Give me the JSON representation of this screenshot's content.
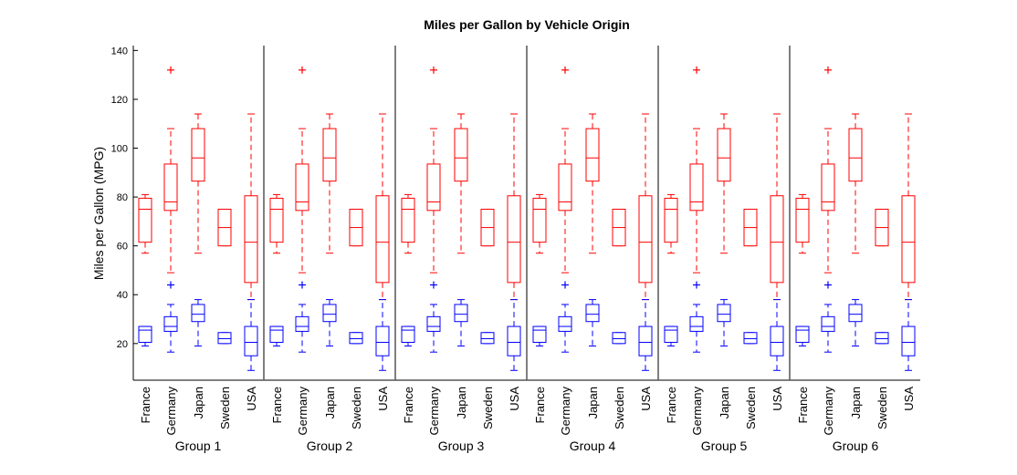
{
  "chart_data": {
    "type": "boxplot",
    "title": "Miles per Gallon by Vehicle Origin",
    "ylabel": "Miles per Gallon (MPG)",
    "xlabel": "",
    "ylim": [
      5,
      142
    ],
    "yticks": [
      20,
      40,
      60,
      80,
      100,
      120,
      140
    ],
    "categories": [
      "France",
      "Germany",
      "Japan",
      "Sweden",
      "USA"
    ],
    "groups": [
      "Group 1",
      "Group 2",
      "Group 3",
      "Group 4",
      "Group 5",
      "Group 6"
    ],
    "series": [
      {
        "name": "red",
        "color": "#ff0000",
        "boxes": [
          {
            "category": "France",
            "whisker_low": 57,
            "q1": 61.5,
            "median": 75,
            "q3": 79.5,
            "whisker_high": 81,
            "outliers": []
          },
          {
            "category": "Germany",
            "whisker_low": 49,
            "q1": 74.5,
            "median": 78,
            "q3": 93.5,
            "whisker_high": 108,
            "outliers": [
              132
            ]
          },
          {
            "category": "Japan",
            "whisker_low": 57,
            "q1": 86.5,
            "median": 96,
            "q3": 108,
            "whisker_high": 114,
            "outliers": []
          },
          {
            "category": "Sweden",
            "whisker_low": 60,
            "q1": 60,
            "median": 67.5,
            "q3": 75,
            "whisker_high": 75,
            "outliers": []
          },
          {
            "category": "USA",
            "whisker_low": 38,
            "q1": 45,
            "median": 61.5,
            "q3": 80.5,
            "whisker_high": 114,
            "outliers": []
          }
        ]
      },
      {
        "name": "blue",
        "color": "#0000ff",
        "boxes": [
          {
            "category": "France",
            "whisker_low": 19,
            "q1": 20.5,
            "median": 25.5,
            "q3": 27,
            "whisker_high": 27,
            "outliers": []
          },
          {
            "category": "Germany",
            "whisker_low": 16.5,
            "q1": 25,
            "median": 27,
            "q3": 31,
            "whisker_high": 36,
            "outliers": [
              44
            ]
          },
          {
            "category": "Japan",
            "whisker_low": 19,
            "q1": 29,
            "median": 32,
            "q3": 36,
            "whisker_high": 38,
            "outliers": []
          },
          {
            "category": "Sweden",
            "whisker_low": 20,
            "q1": 20,
            "median": 22,
            "q3": 24.5,
            "whisker_high": 24.5,
            "outliers": []
          },
          {
            "category": "USA",
            "whisker_low": 9,
            "q1": 15,
            "median": 20.5,
            "q3": 27,
            "whisker_high": 38,
            "outliers": []
          }
        ]
      }
    ]
  }
}
